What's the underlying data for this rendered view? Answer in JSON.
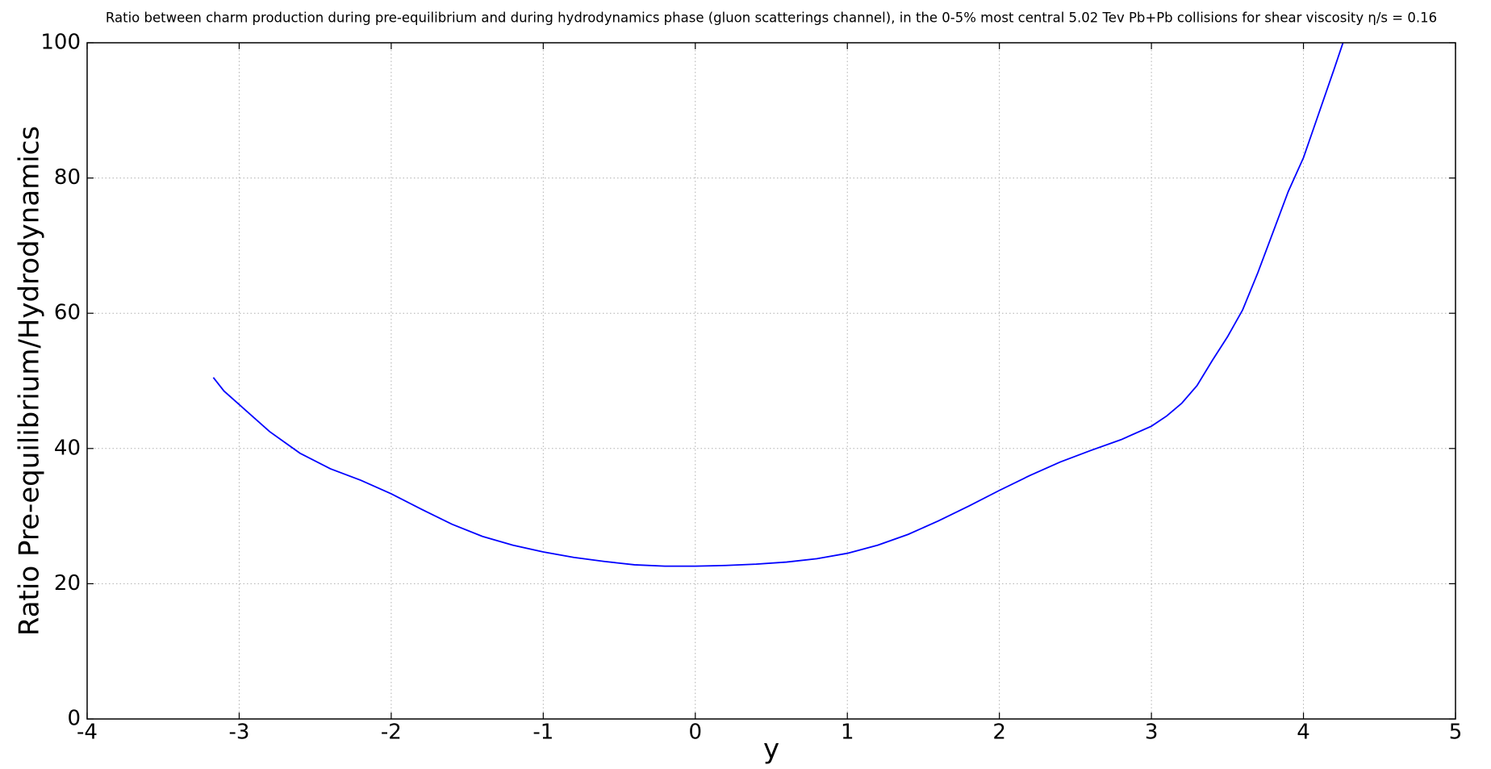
{
  "chart_data": {
    "type": "line",
    "title": "Ratio between charm production during pre-equilibrium and during hydrodynamics phase (gluon scatterings channel), in the 0-5% most central 5.02 Tev Pb+Pb collisions for shear viscosity η/s = 0.16",
    "xlabel": "y",
    "ylabel": "Ratio Pre-equilibrium/Hydrodynamics",
    "x": [
      -3.17,
      -3.1,
      -3.0,
      -2.8,
      -2.6,
      -2.4,
      -2.2,
      -2.0,
      -1.8,
      -1.6,
      -1.4,
      -1.2,
      -1.0,
      -0.8,
      -0.6,
      -0.4,
      -0.2,
      0.0,
      0.2,
      0.4,
      0.6,
      0.8,
      1.0,
      1.2,
      1.4,
      1.6,
      1.8,
      2.0,
      2.2,
      2.4,
      2.6,
      2.8,
      3.0,
      3.1,
      3.2,
      3.3,
      3.4,
      3.5,
      3.6,
      3.7,
      3.8,
      3.9,
      4.0,
      4.1,
      4.2,
      4.26
    ],
    "values": [
      50.5,
      48.5,
      46.5,
      42.5,
      39.3,
      37.0,
      35.3,
      33.3,
      31.0,
      28.8,
      27.0,
      25.7,
      24.7,
      23.9,
      23.3,
      22.8,
      22.6,
      22.6,
      22.7,
      22.9,
      23.2,
      23.7,
      24.5,
      25.7,
      27.3,
      29.3,
      31.5,
      33.8,
      36.0,
      38.0,
      39.7,
      41.3,
      43.3,
      44.8,
      46.7,
      49.3,
      53.0,
      56.5,
      60.5,
      66.0,
      72.0,
      78.0,
      83.0,
      89.5,
      96.0,
      100.0
    ],
    "color": "#0000ff",
    "xlim": [
      -4,
      5
    ],
    "xticks": [
      -4,
      -3,
      -2,
      -1,
      0,
      1,
      2,
      3,
      4,
      5
    ],
    "ylim": [
      0,
      100
    ],
    "yticks": [
      0,
      20,
      40,
      60,
      80,
      100
    ],
    "grid": true
  }
}
